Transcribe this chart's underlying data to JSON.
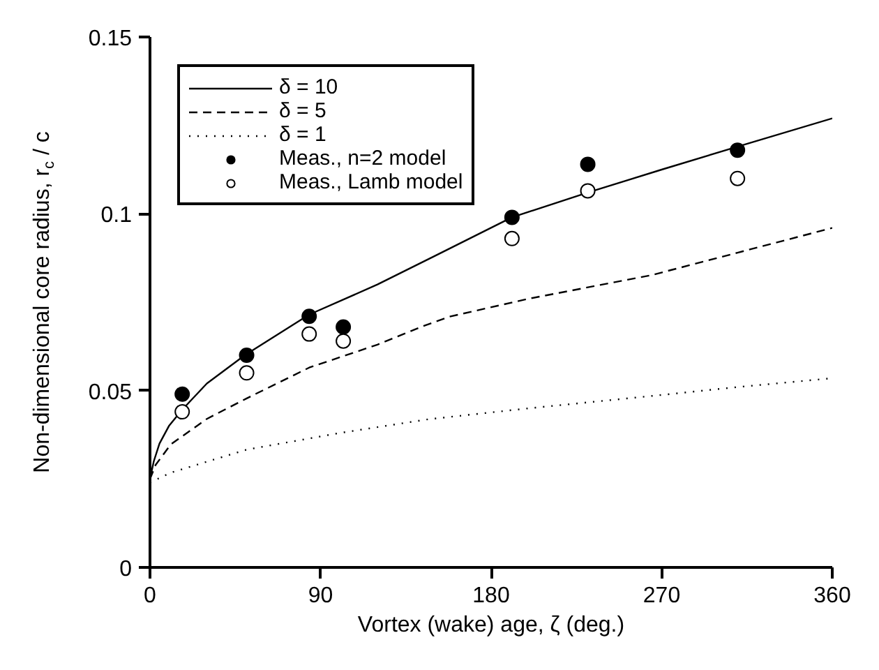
{
  "chart_data": {
    "type": "line",
    "xlabel": "Vortex (wake) age, ζ (deg.)",
    "ylabel": "Non-dimensional core radius, r$_{c}$ / c",
    "xlim": [
      0,
      360
    ],
    "ylim": [
      0,
      0.15
    ],
    "xticks": [
      0,
      90,
      180,
      270,
      360
    ],
    "yticks": [
      0,
      0.05,
      0.1,
      0.15
    ],
    "grid": false,
    "legend": "top left",
    "series": [
      {
        "name": "δ = 10",
        "line_style": "solid",
        "color": "#000000",
        "x": [
          0,
          2,
          5,
          10,
          17,
          30,
          50,
          84,
          120,
          150,
          191,
          231,
          270,
          310,
          360
        ],
        "values": [
          0.025,
          0.03,
          0.035,
          0.04,
          0.0446,
          0.052,
          0.06,
          0.0715,
          0.08,
          0.088,
          0.099,
          0.106,
          0.1125,
          0.119,
          0.127
        ]
      },
      {
        "name": "δ = 5",
        "line_style": "dashed",
        "color": "#000000",
        "x": [
          0,
          3,
          11,
          30,
          51,
          84,
          120,
          143,
          158,
          200,
          265,
          310,
          360
        ],
        "values": [
          0.025,
          0.029,
          0.0348,
          0.042,
          0.0478,
          0.0565,
          0.063,
          0.068,
          0.0709,
          0.076,
          0.0827,
          0.089,
          0.096
        ]
      },
      {
        "name": "δ = 1",
        "line_style": "dotted",
        "color": "#000000",
        "x": [
          0,
          11,
          51,
          100,
          147,
          200,
          265,
          310,
          360
        ],
        "values": [
          0.024,
          0.0268,
          0.0333,
          0.038,
          0.0419,
          0.045,
          0.0485,
          0.051,
          0.0535
        ]
      },
      {
        "name": "Meas., n=2 model",
        "type": "scatter",
        "marker": "circle",
        "color": "#000000",
        "x": [
          17,
          51,
          84,
          102,
          191,
          231,
          310
        ],
        "values": [
          0.049,
          0.06,
          0.071,
          0.068,
          0.099,
          0.114,
          0.118
        ]
      },
      {
        "name": "Meas., Lamb model",
        "type": "scatter",
        "marker": "circle",
        "color": "#ffffff",
        "x": [
          17,
          51,
          84,
          102,
          191,
          231,
          310
        ],
        "values": [
          0.044,
          0.055,
          0.066,
          0.064,
          0.093,
          0.1065,
          0.11
        ]
      }
    ]
  }
}
